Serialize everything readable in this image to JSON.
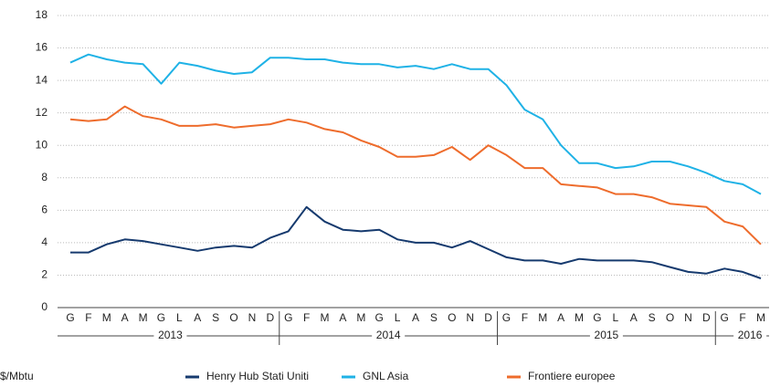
{
  "chart_data": {
    "type": "line",
    "y_axis_label": "$/Mbtu",
    "categories": [
      "G",
      "F",
      "M",
      "A",
      "M",
      "G",
      "L",
      "A",
      "S",
      "O",
      "N",
      "D",
      "G",
      "F",
      "M",
      "A",
      "M",
      "G",
      "L",
      "A",
      "S",
      "O",
      "N",
      "D",
      "G",
      "F",
      "M",
      "A",
      "M",
      "G",
      "L",
      "A",
      "S",
      "O",
      "N",
      "D",
      "G",
      "F",
      "M"
    ],
    "x_groups": [
      "2013",
      "2014",
      "2015",
      "2016"
    ],
    "series": [
      {
        "name": "Henry Hub Stati Uniti",
        "color": "#163a6e",
        "values": [
          3.4,
          3.4,
          3.9,
          4.2,
          4.1,
          3.9,
          3.7,
          3.5,
          3.7,
          3.8,
          3.7,
          4.3,
          4.7,
          6.2,
          5.3,
          4.8,
          4.7,
          4.8,
          4.2,
          4.0,
          4.0,
          3.7,
          4.1,
          3.6,
          3.1,
          2.9,
          2.9,
          2.7,
          3.0,
          2.9,
          2.9,
          2.9,
          2.8,
          2.5,
          2.2,
          2.1,
          2.4,
          2.2,
          1.8
        ]
      },
      {
        "name": "GNL Asia",
        "color": "#1fb2e6",
        "values": [
          15.1,
          15.6,
          15.3,
          15.1,
          15.0,
          13.8,
          15.1,
          14.9,
          14.6,
          14.4,
          14.5,
          15.4,
          15.4,
          15.3,
          15.3,
          15.1,
          15.0,
          15.0,
          14.8,
          14.9,
          14.7,
          15.0,
          14.7,
          14.7,
          13.7,
          12.2,
          11.6,
          10.0,
          8.9,
          8.9,
          8.6,
          8.7,
          9.0,
          9.0,
          8.7,
          8.3,
          7.8,
          7.6,
          7.0
        ]
      },
      {
        "name": "Frontiere europee",
        "color": "#ee6c2c",
        "values": [
          11.6,
          11.5,
          11.6,
          12.4,
          11.8,
          11.6,
          11.2,
          11.2,
          11.3,
          11.1,
          11.2,
          11.3,
          11.6,
          11.4,
          11.0,
          10.8,
          10.3,
          9.9,
          9.3,
          9.3,
          9.4,
          9.9,
          9.1,
          10.0,
          9.4,
          8.6,
          8.6,
          7.6,
          7.5,
          7.4,
          7.0,
          7.0,
          6.8,
          6.4,
          6.3,
          6.2,
          5.3,
          5.0,
          3.9
        ]
      }
    ],
    "ylim": [
      0,
      18
    ],
    "yticks": [
      0,
      2,
      4,
      6,
      8,
      10,
      12,
      14,
      16,
      18
    ],
    "grid": true
  }
}
